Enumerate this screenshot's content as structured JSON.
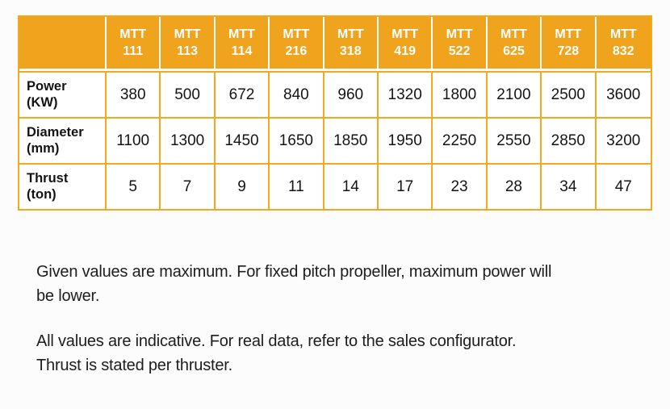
{
  "colors": {
    "page_bg": "#FCFCFC",
    "header_bg": "#F0A41E",
    "border": "#F3A81D",
    "header_text": "#FFFFFF",
    "body_text": "#1C1C1C"
  },
  "table": {
    "corner_label": "",
    "columns": [
      {
        "line1": "MTT",
        "line2": "111"
      },
      {
        "line1": "MTT",
        "line2": "113"
      },
      {
        "line1": "MTT",
        "line2": "114"
      },
      {
        "line1": "MTT",
        "line2": "216"
      },
      {
        "line1": "MTT",
        "line2": "318"
      },
      {
        "line1": "MTT",
        "line2": "419"
      },
      {
        "line1": "MTT",
        "line2": "522"
      },
      {
        "line1": "MTT",
        "line2": "625"
      },
      {
        "line1": "MTT",
        "line2": "728"
      },
      {
        "line1": "MTT",
        "line2": "832"
      }
    ],
    "rows": [
      {
        "label_line1": "Power",
        "label_line2": "(KW)",
        "values": [
          "380",
          "500",
          "672",
          "840",
          "960",
          "1320",
          "1800",
          "2100",
          "2500",
          "3600"
        ]
      },
      {
        "label_line1": "Diameter",
        "label_line2": "(mm)",
        "values": [
          "1100",
          "1300",
          "1450",
          "1650",
          "1850",
          "1950",
          "2250",
          "2550",
          "2850",
          "3200"
        ]
      },
      {
        "label_line1": "Thrust",
        "label_line2": "(ton)",
        "values": [
          "5",
          "7",
          "9",
          "11",
          "14",
          "17",
          "23",
          "28",
          "34",
          "47"
        ]
      }
    ]
  },
  "notes": [
    {
      "lines": [
        "Given values are maximum. For fixed pitch propeller, maximum power will",
        "be lower."
      ]
    },
    {
      "lines": [
        "All values are indicative. For real data, refer to the sales configurator.",
        "Thrust is stated per thruster."
      ]
    }
  ]
}
